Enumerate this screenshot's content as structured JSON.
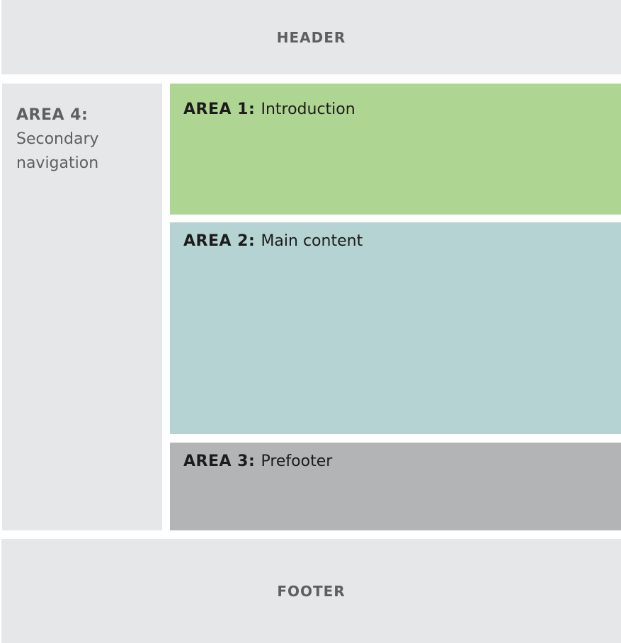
{
  "layout": {
    "header": {
      "label": "HEADER"
    },
    "footer": {
      "label": "FOOTER"
    },
    "area4": {
      "tag": "AREA 4:",
      "desc": "Secondary navigation"
    },
    "area1": {
      "tag": "AREA 1:",
      "desc": "Introduction"
    },
    "area2": {
      "tag": "AREA 2:",
      "desc": "Main content"
    },
    "area3": {
      "tag": "AREA 3:",
      "desc": "Prefooter"
    }
  },
  "colors": {
    "header_footer_bg": "#e6e7e9",
    "sidebar_bg": "#e6e7e9",
    "area1_bg": "#afd593",
    "area2_bg": "#b4d3d2",
    "area3_bg": "#b3b4b6"
  }
}
